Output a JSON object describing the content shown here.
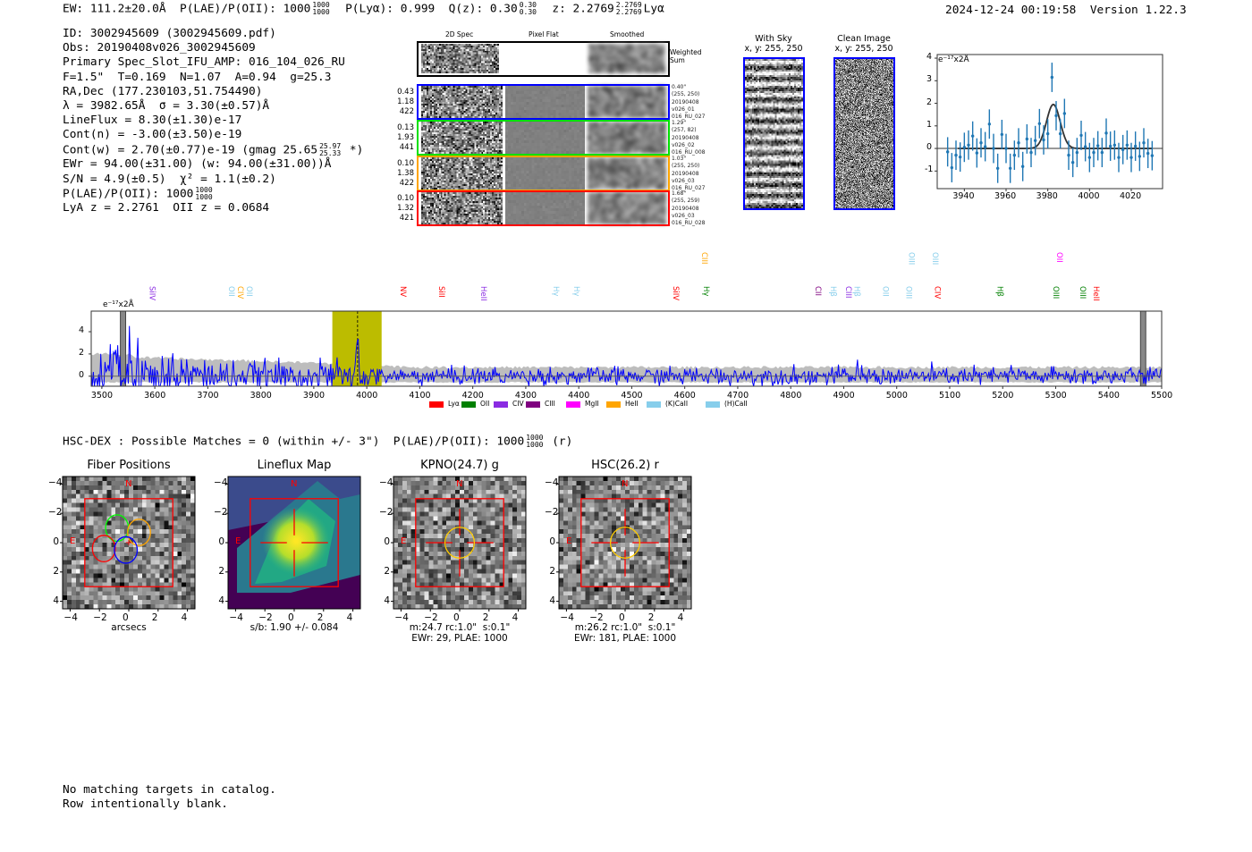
{
  "header": {
    "ew": "EW: 111.2±20.0Å",
    "plae": "P(LAE)/P(OII): 1000",
    "plae_hi": "1000",
    "plae_lo": "1000",
    "plya": "P(Lyα): 0.999",
    "qz": "Q(z): 0.30",
    "qz_hi": "0.30",
    "qz_lo": "0.30",
    "z": "z: 2.2769",
    "z_hi": "2.2769",
    "z_lo": "2.2769",
    "z_suffix": "Lyα",
    "timestamp": "2024-12-24 00:19:58",
    "version": "Version 1.22.3"
  },
  "info": {
    "id": "ID: 3002945609 (3002945609.pdf)",
    "obs": "Obs: 20190408v026_3002945609",
    "primary": "Primary Spec_Slot_IFU_AMP: 016_104_026_RU",
    "params": "F=1.5\"  T=0.169  N=1.07  A=0.94  g=25.3",
    "radec": "RA,Dec (177.230103,51.754490)",
    "lambda": "λ = 3982.65Å  σ = 3.30(±0.57)Å",
    "lineflux": "LineFlux = 8.30(±1.30)e-17",
    "contn": "Cont(n) = -3.00(±3.50)e-19",
    "contw": "Cont(w) = 2.70(±0.77)e-19 (gmag 25.65",
    "contw_hi": "25.97",
    "contw_lo": "25.33",
    "contw_end": "*)",
    "ewr": "EWr = 94.00(±31.00) (w: 94.00(±31.00))Å",
    "sn": "S/N = 4.9(±0.5)  χ² = 1.1(±0.2)",
    "plae": "P(LAE)/P(OII): 1000",
    "plae_hi": "1000",
    "plae_lo": "1000",
    "z": "LyA z = 2.2761  OII z = 0.0684"
  },
  "spec2d": {
    "columns": [
      "2D Spec",
      "Pixel Flat",
      "Smoothed"
    ],
    "weighted_label": "Weighted\nSum",
    "rows": [
      {
        "color": "#0000ff",
        "left": "0.43\n1.18\n422",
        "right": "0.40\"\n(255, 250)\n20190408\nv026_01\n016_RU_027"
      },
      {
        "color": "#00e000",
        "left": "0.13\n1.93\n441",
        "right": "1.29\"\n(257, 82)\n20190408\nv026_02\n016_RU_008"
      },
      {
        "color": "#ffa500",
        "left": "0.10\n1.38\n422",
        "right": "1.03\"\n(255, 250)\n20190408\nv026_03\n016_RU_027"
      },
      {
        "color": "#ff0000",
        "left": "0.10\n1.32\n421",
        "right": "1.68\"\n(255, 259)\n20190408\nv026_03\n016_RU_028"
      }
    ]
  },
  "sky": {
    "with_sky": "With Sky\nx, y: 255, 250",
    "clean": "Clean Image\nx, y: 255, 250"
  },
  "hscdex": {
    "text": "HSC-DEX : Possible Matches = 0 (within +/- 3\")  P(LAE)/P(OII): 1000",
    "hi": "1000",
    "lo": "1000",
    "suffix": "(r)"
  },
  "panels": [
    {
      "title": "Fiber Positions",
      "caption1": "arcsecs",
      "caption2": ""
    },
    {
      "title": "Lineflux Map",
      "caption1": "s/b: 1.90 +/- 0.084",
      "caption2": ""
    },
    {
      "title": "KPNO(24.7) g",
      "caption1": "m:24.7 rc:1.0\"  s:0.1\"",
      "caption2": "EWr: 29, PLAE: 1000"
    },
    {
      "title": "HSC(26.2) r",
      "caption1": "m:26.2 rc:1.0\"  s:0.1\"",
      "caption2": "EWr: 181, PLAE: 1000"
    }
  ],
  "panel_ticks": [
    "−4",
    "−2",
    "0",
    "2",
    "4"
  ],
  "compass": {
    "n": "N",
    "e": "E"
  },
  "footer": {
    "line1": "No matching targets in catalog.",
    "line2": "Row intentionally blank."
  },
  "chart_data": [
    {
      "type": "scatter",
      "title": "",
      "unit_label": "e⁻¹⁷x2Å",
      "xlim": [
        3927,
        4035
      ],
      "ylim": [
        -1.78,
        4.16
      ],
      "xticks": [
        3940,
        3960,
        3980,
        4000,
        4020
      ],
      "yticks": [
        -1,
        0,
        1,
        2,
        3,
        4
      ],
      "x": [
        3932,
        3934,
        3936,
        3938,
        3940,
        3942,
        3944,
        3946,
        3948,
        3950,
        3952,
        3954,
        3956,
        3958,
        3960,
        3962,
        3964,
        3966,
        3968,
        3970,
        3972,
        3974,
        3976,
        3978,
        3980,
        3982,
        3984,
        3986,
        3988,
        3990,
        3992,
        3994,
        3996,
        3998,
        4000,
        4002,
        4004,
        4006,
        4008,
        4010,
        4012,
        4014,
        4016,
        4018,
        4020,
        4022,
        4024,
        4026,
        4028,
        4030
      ],
      "y": [
        -0.15,
        -0.85,
        -0.3,
        -0.38,
        0.05,
        0.15,
        0.55,
        -0.2,
        0.25,
        0.08,
        1.08,
        0.0,
        -0.88,
        0.62,
        0.0,
        -0.88,
        -0.3,
        0.25,
        -0.8,
        0.42,
        -0.18,
        0.35,
        1.1,
        0.38,
        0.65,
        3.15,
        1.45,
        0.65,
        1.55,
        -0.3,
        -0.62,
        -0.18,
        0.58,
        0.08,
        -0.4,
        -0.18,
        0.12,
        -0.18,
        0.68,
        0.1,
        0.15,
        -0.4,
        -0.05,
        0.15,
        -0.4,
        0.1,
        -0.35,
        0.25,
        -0.22,
        -0.32
      ],
      "yerr": 0.65,
      "fit": {
        "type": "gaussian",
        "center": 3982.65,
        "sigma": 3.3,
        "amplitude": 1.95,
        "range": [
          3937,
          4030
        ]
      }
    },
    {
      "type": "line",
      "unit_label": "e⁻¹⁷x2Å",
      "xlim": [
        3480,
        5500
      ],
      "ylim": [
        -0.9,
        5.85
      ],
      "xticks": [
        3500,
        3600,
        3700,
        3800,
        3900,
        4000,
        4100,
        4200,
        4300,
        4400,
        4500,
        4600,
        4700,
        4800,
        4900,
        5000,
        5100,
        5200,
        5300,
        5400,
        5500
      ],
      "yticks": [
        0,
        2,
        4
      ],
      "highlight_band": [
        3935,
        4028
      ],
      "line_center": 3982.65,
      "masked": [
        [
          3535,
          3545
        ],
        [
          5460,
          5470
        ]
      ],
      "lines": [
        {
          "name": "SiIV",
          "w": 3594,
          "color": "#8a2be2",
          "high": false
        },
        {
          "name": "OII",
          "w": 3743,
          "color": "#87ceeb",
          "high": false
        },
        {
          "name": "CIV",
          "w": 3760,
          "color": "#ffa500",
          "high": false
        },
        {
          "name": "OII",
          "w": 3777,
          "color": "#87ceeb",
          "high": false
        },
        {
          "name": "NV",
          "w": 4067,
          "color": "#ff0000",
          "high": false
        },
        {
          "name": "SiII",
          "w": 4140,
          "color": "#ff0000",
          "high": false
        },
        {
          "name": "HeII",
          "w": 4219,
          "color": "#8a2be2",
          "high": false
        },
        {
          "name": "Hγ",
          "w": 4356,
          "color": "#87ceeb",
          "high": false
        },
        {
          "name": "Hγ",
          "w": 4395,
          "color": "#87ceeb",
          "high": false
        },
        {
          "name": "SiIV",
          "w": 4582,
          "color": "#ff0000",
          "high": false
        },
        {
          "name": "CIII",
          "w": 4636,
          "color": "#ffa500",
          "high": true
        },
        {
          "name": "Hγ",
          "w": 4639,
          "color": "#008000",
          "high": false
        },
        {
          "name": "CII",
          "w": 4850,
          "color": "#800080",
          "high": false
        },
        {
          "name": "Hβ",
          "w": 4879,
          "color": "#87ceeb",
          "high": false
        },
        {
          "name": "CIII",
          "w": 4908,
          "color": "#8a2be2",
          "high": false
        },
        {
          "name": "Hβ",
          "w": 4924,
          "color": "#87ceeb",
          "high": false
        },
        {
          "name": "OII",
          "w": 4978,
          "color": "#87ceeb",
          "high": false
        },
        {
          "name": "OIII",
          "w": 5022,
          "color": "#87ceeb",
          "high": false
        },
        {
          "name": "OIII",
          "w": 5027,
          "color": "#87ceeb",
          "high": true
        },
        {
          "name": "OIII",
          "w": 5071,
          "color": "#87ceeb",
          "high": true
        },
        {
          "name": "CIV",
          "w": 5076,
          "color": "#ff0000",
          "high": false
        },
        {
          "name": "Hβ",
          "w": 5194,
          "color": "#008000",
          "high": false
        },
        {
          "name": "OIII",
          "w": 5299,
          "color": "#008000",
          "high": false
        },
        {
          "name": "OII",
          "w": 5306,
          "color": "#ff00ff",
          "high": true
        },
        {
          "name": "OIII",
          "w": 5350,
          "color": "#008000",
          "high": false
        },
        {
          "name": "HeII",
          "w": 5375,
          "color": "#ff0000",
          "high": false
        }
      ],
      "legend": [
        {
          "label": "Lyα",
          "color": "#ff0000"
        },
        {
          "label": "OII",
          "color": "#008000"
        },
        {
          "label": "CIV",
          "color": "#8a2be2"
        },
        {
          "label": "CIII",
          "color": "#800080"
        },
        {
          "label": "MgII",
          "color": "#ff00ff"
        },
        {
          "label": "HeII",
          "color": "#ffa500"
        },
        {
          "label": "(K)CaII",
          "color": "#87ceeb"
        },
        {
          "label": "(H)CaII",
          "color": "#87ceeb"
        }
      ],
      "legend_position": "bottom-center"
    }
  ]
}
